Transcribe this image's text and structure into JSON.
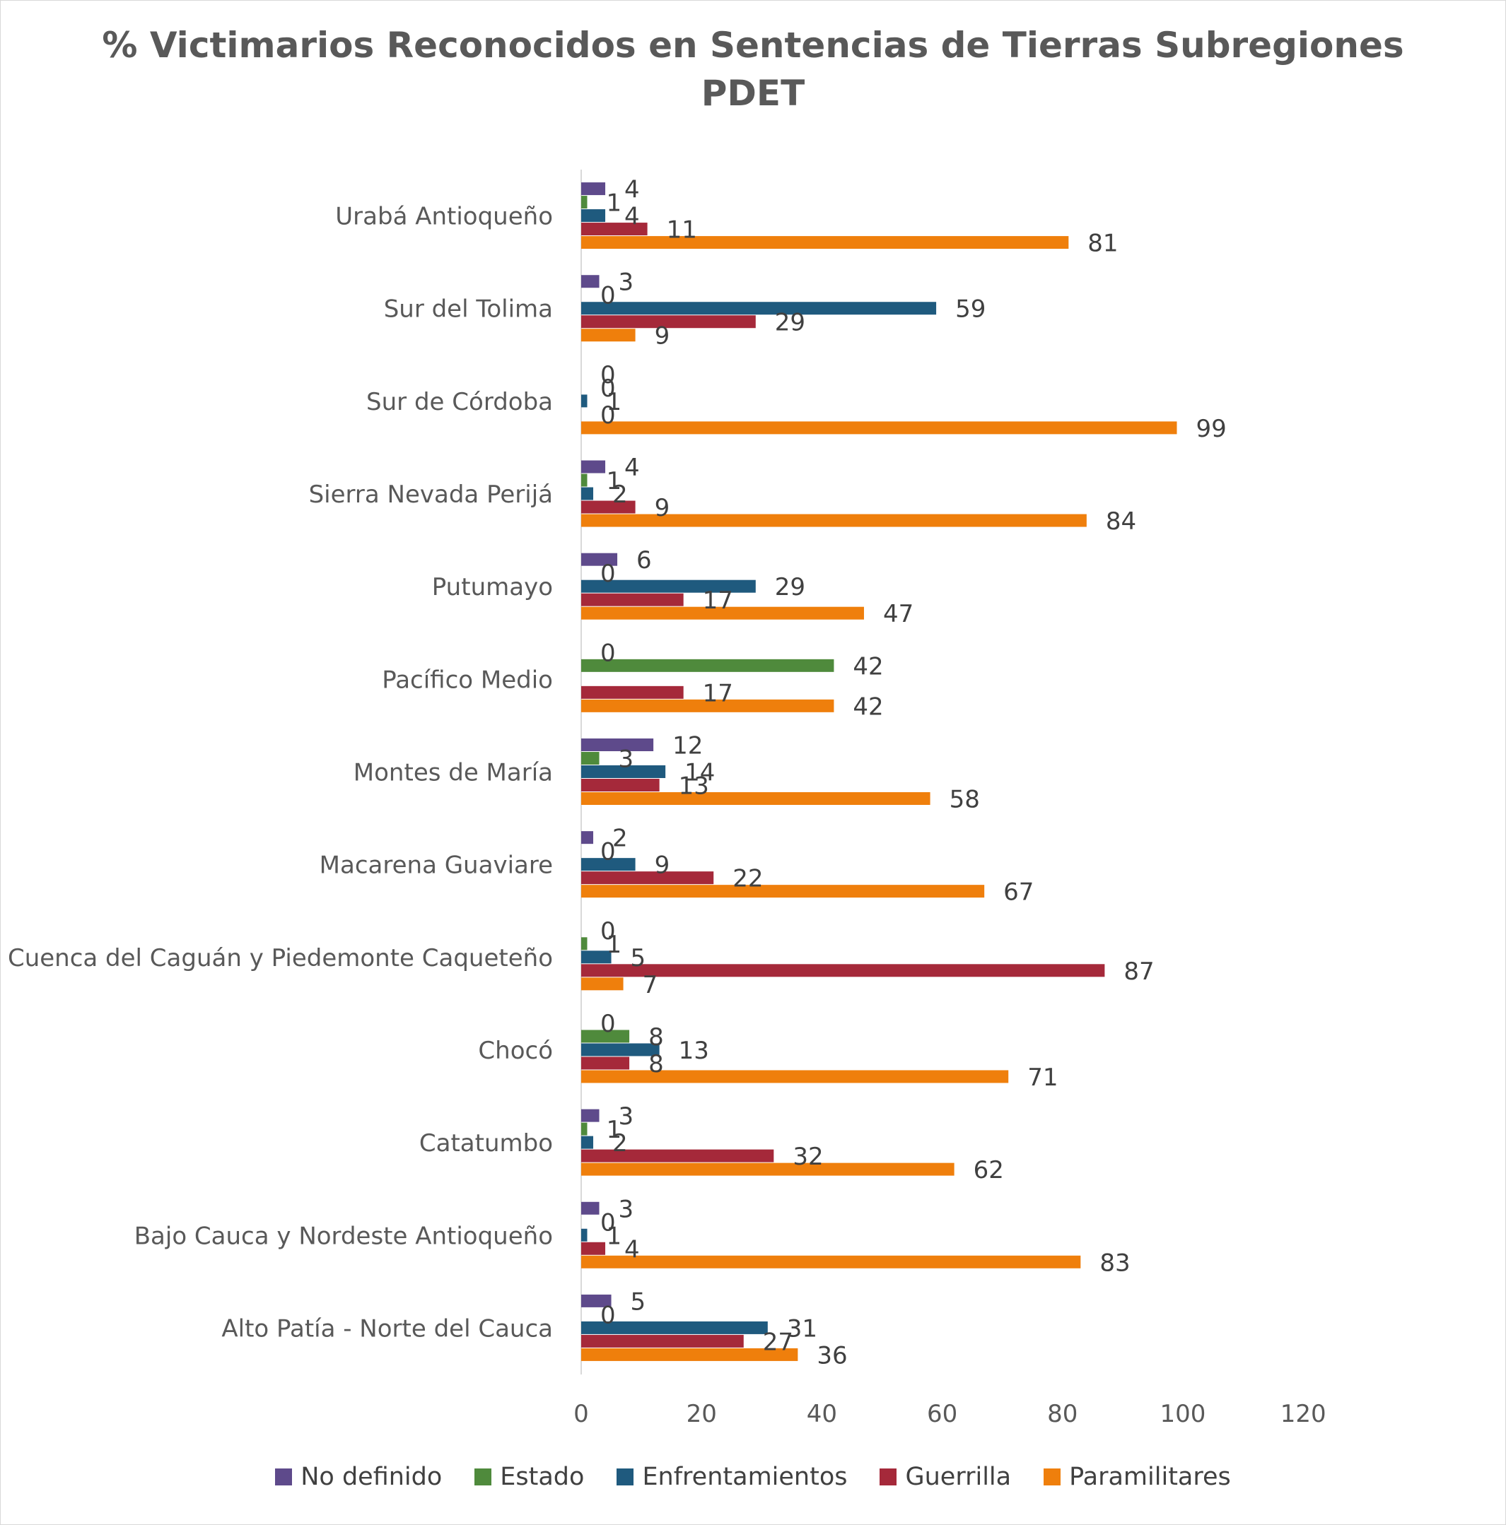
{
  "chart_data": {
    "type": "bar",
    "orientation": "horizontal",
    "title": "% Victimarios Reconocidos en Sentencias de Tierras Subregiones PDET",
    "title_lines": [
      "% Victimarios Reconocidos en Sentencias de Tierras Subregiones",
      "PDET"
    ],
    "categories": [
      "Urabá Antioqueño",
      "Sur del Tolima",
      "Sur de Córdoba",
      "Sierra Nevada Perijá",
      "Putumayo",
      "Pacífico Medio",
      "Montes de María",
      "Macarena Guaviare",
      "Cuenca del Caguán y Piedemonte Caqueteño",
      "Chocó",
      "Catatumbo",
      "Bajo Cauca y Nordeste Antioqueño",
      "Alto Patía - Norte del Cauca"
    ],
    "series": [
      {
        "name": "No definido",
        "color": "#5e4a8b",
        "values": [
          4,
          3,
          0,
          4,
          6,
          0,
          12,
          2,
          0,
          0,
          3,
          3,
          5
        ]
      },
      {
        "name": "Estado",
        "color": "#4f8a3c",
        "values": [
          1,
          0,
          0,
          1,
          0,
          42,
          3,
          0,
          1,
          8,
          1,
          0,
          0
        ]
      },
      {
        "name": "Enfrentamientos",
        "color": "#1f5a7e",
        "values": [
          4,
          59,
          1,
          2,
          29,
          0,
          14,
          9,
          5,
          13,
          2,
          1,
          31
        ]
      },
      {
        "name": "Guerrilla",
        "color": "#a5293a",
        "values": [
          11,
          29,
          0,
          9,
          17,
          17,
          13,
          22,
          87,
          8,
          32,
          4,
          27
        ]
      },
      {
        "name": "Paramilitares",
        "color": "#ef7f0c",
        "values": [
          81,
          9,
          99,
          84,
          47,
          42,
          58,
          67,
          7,
          71,
          62,
          83,
          36
        ]
      }
    ],
    "label_overrides": [
      {
        "category": "Pacífico Medio",
        "series": "Enfrentamientos",
        "hidden": true
      }
    ],
    "xlim": [
      0,
      120
    ],
    "xticks": [
      "0",
      "20",
      "40",
      "60",
      "80",
      "100",
      "120"
    ],
    "xlabel": "",
    "ylabel": "",
    "grid": false,
    "legend_position": "bottom"
  }
}
